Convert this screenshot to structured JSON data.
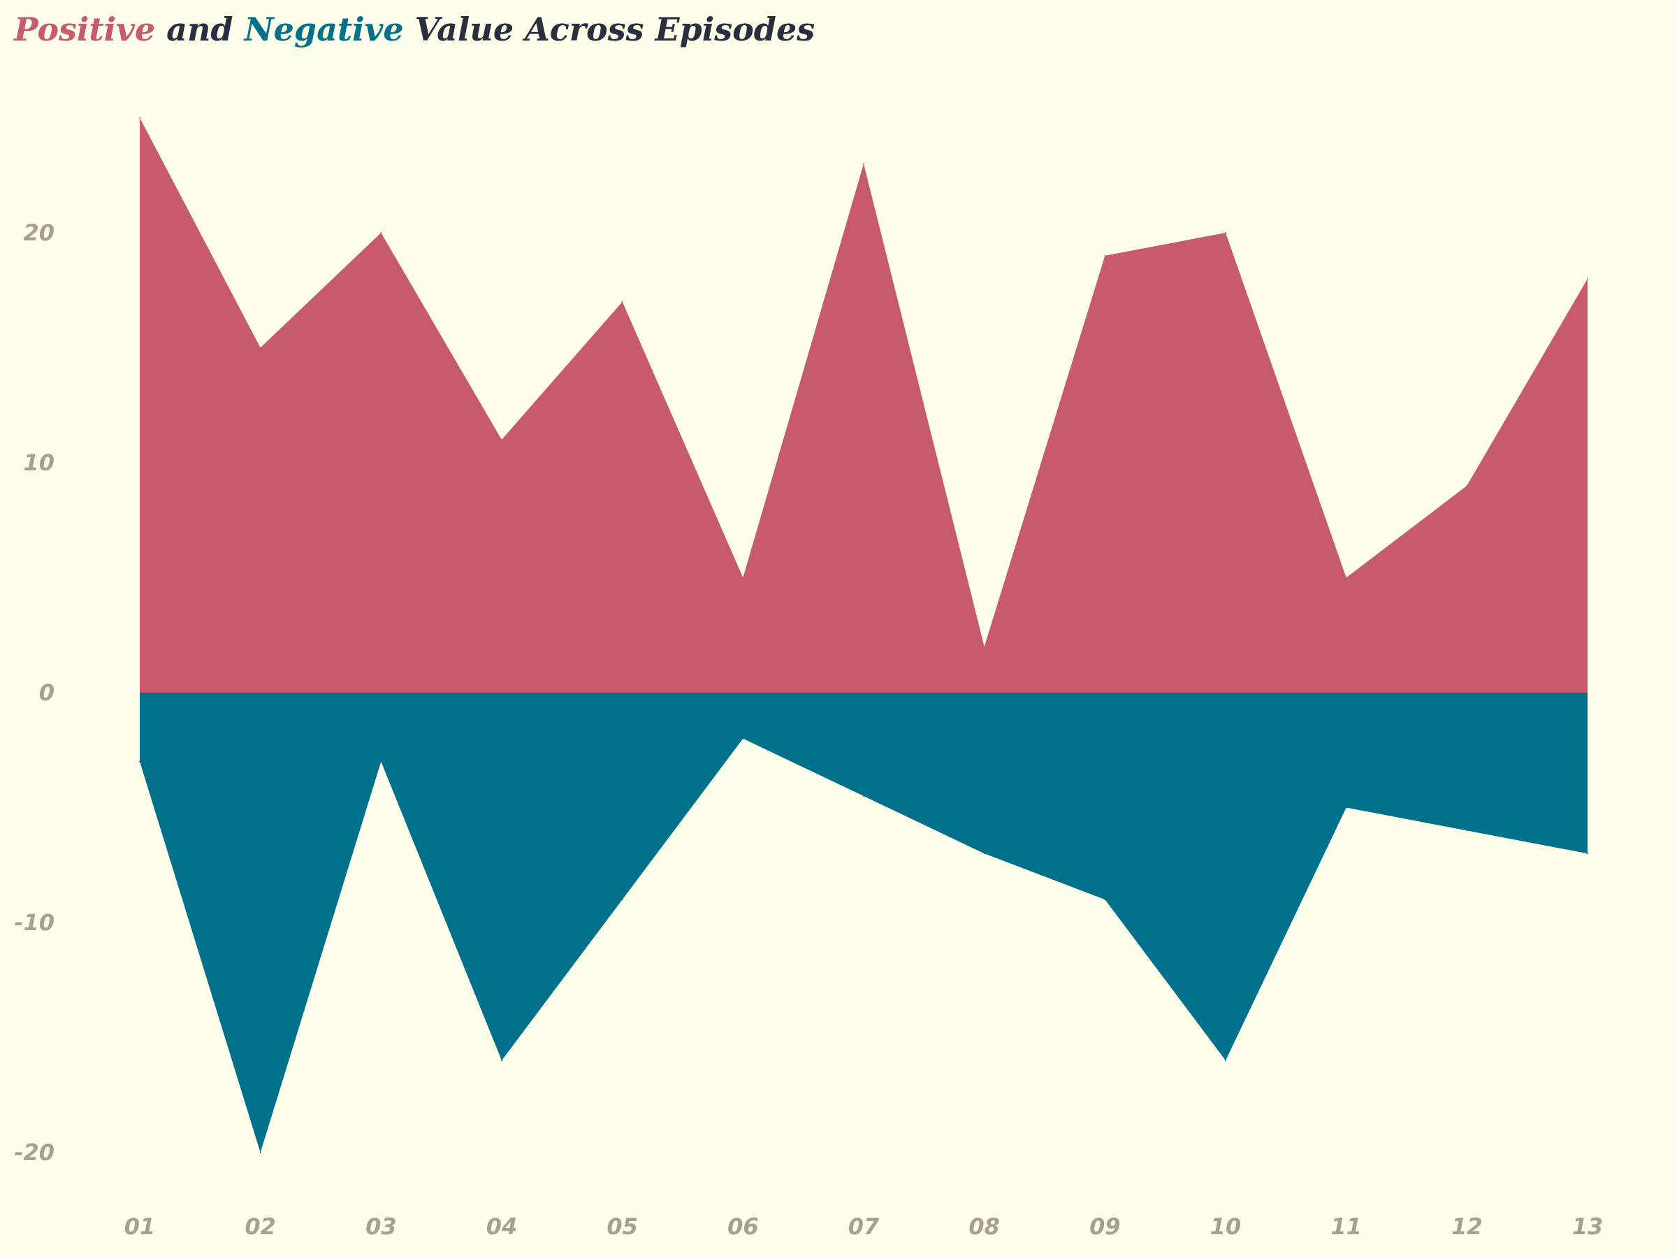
{
  "chart_data": {
    "type": "area",
    "title_parts": [
      {
        "text": "Positive",
        "color": "#c75b6d"
      },
      {
        "text": " and ",
        "color": "#2a2f3f"
      },
      {
        "text": "Negative",
        "color": "#00718b"
      },
      {
        "text": " Value  Across Episodes",
        "color": "#2a2f3f"
      }
    ],
    "xlabel": "",
    "ylabel": "",
    "categories": [
      "01",
      "02",
      "03",
      "04",
      "05",
      "06",
      "07",
      "08",
      "09",
      "10",
      "11",
      "12",
      "13"
    ],
    "series": [
      {
        "color": "#c75b6d",
        "values": [
          25,
          15,
          20,
          11,
          17,
          5,
          23,
          2,
          19,
          20,
          5,
          9,
          18
        ]
      },
      {
        "color": "#00718b",
        "values": [
          -3,
          -20,
          -3,
          -16,
          -9,
          -2,
          -4.5,
          -7,
          -9,
          -16,
          -5,
          -6,
          -7
        ]
      }
    ],
    "ylim": [
      -20.5,
      26
    ],
    "yticks": [
      -20,
      -10,
      0,
      10,
      20
    ],
    "grid": false,
    "legend": "none (series named by colored title words)",
    "colors": {
      "background": "#fffeeb",
      "tick_label": "#a89f8d",
      "title_dark": "#2a2f3f"
    }
  }
}
